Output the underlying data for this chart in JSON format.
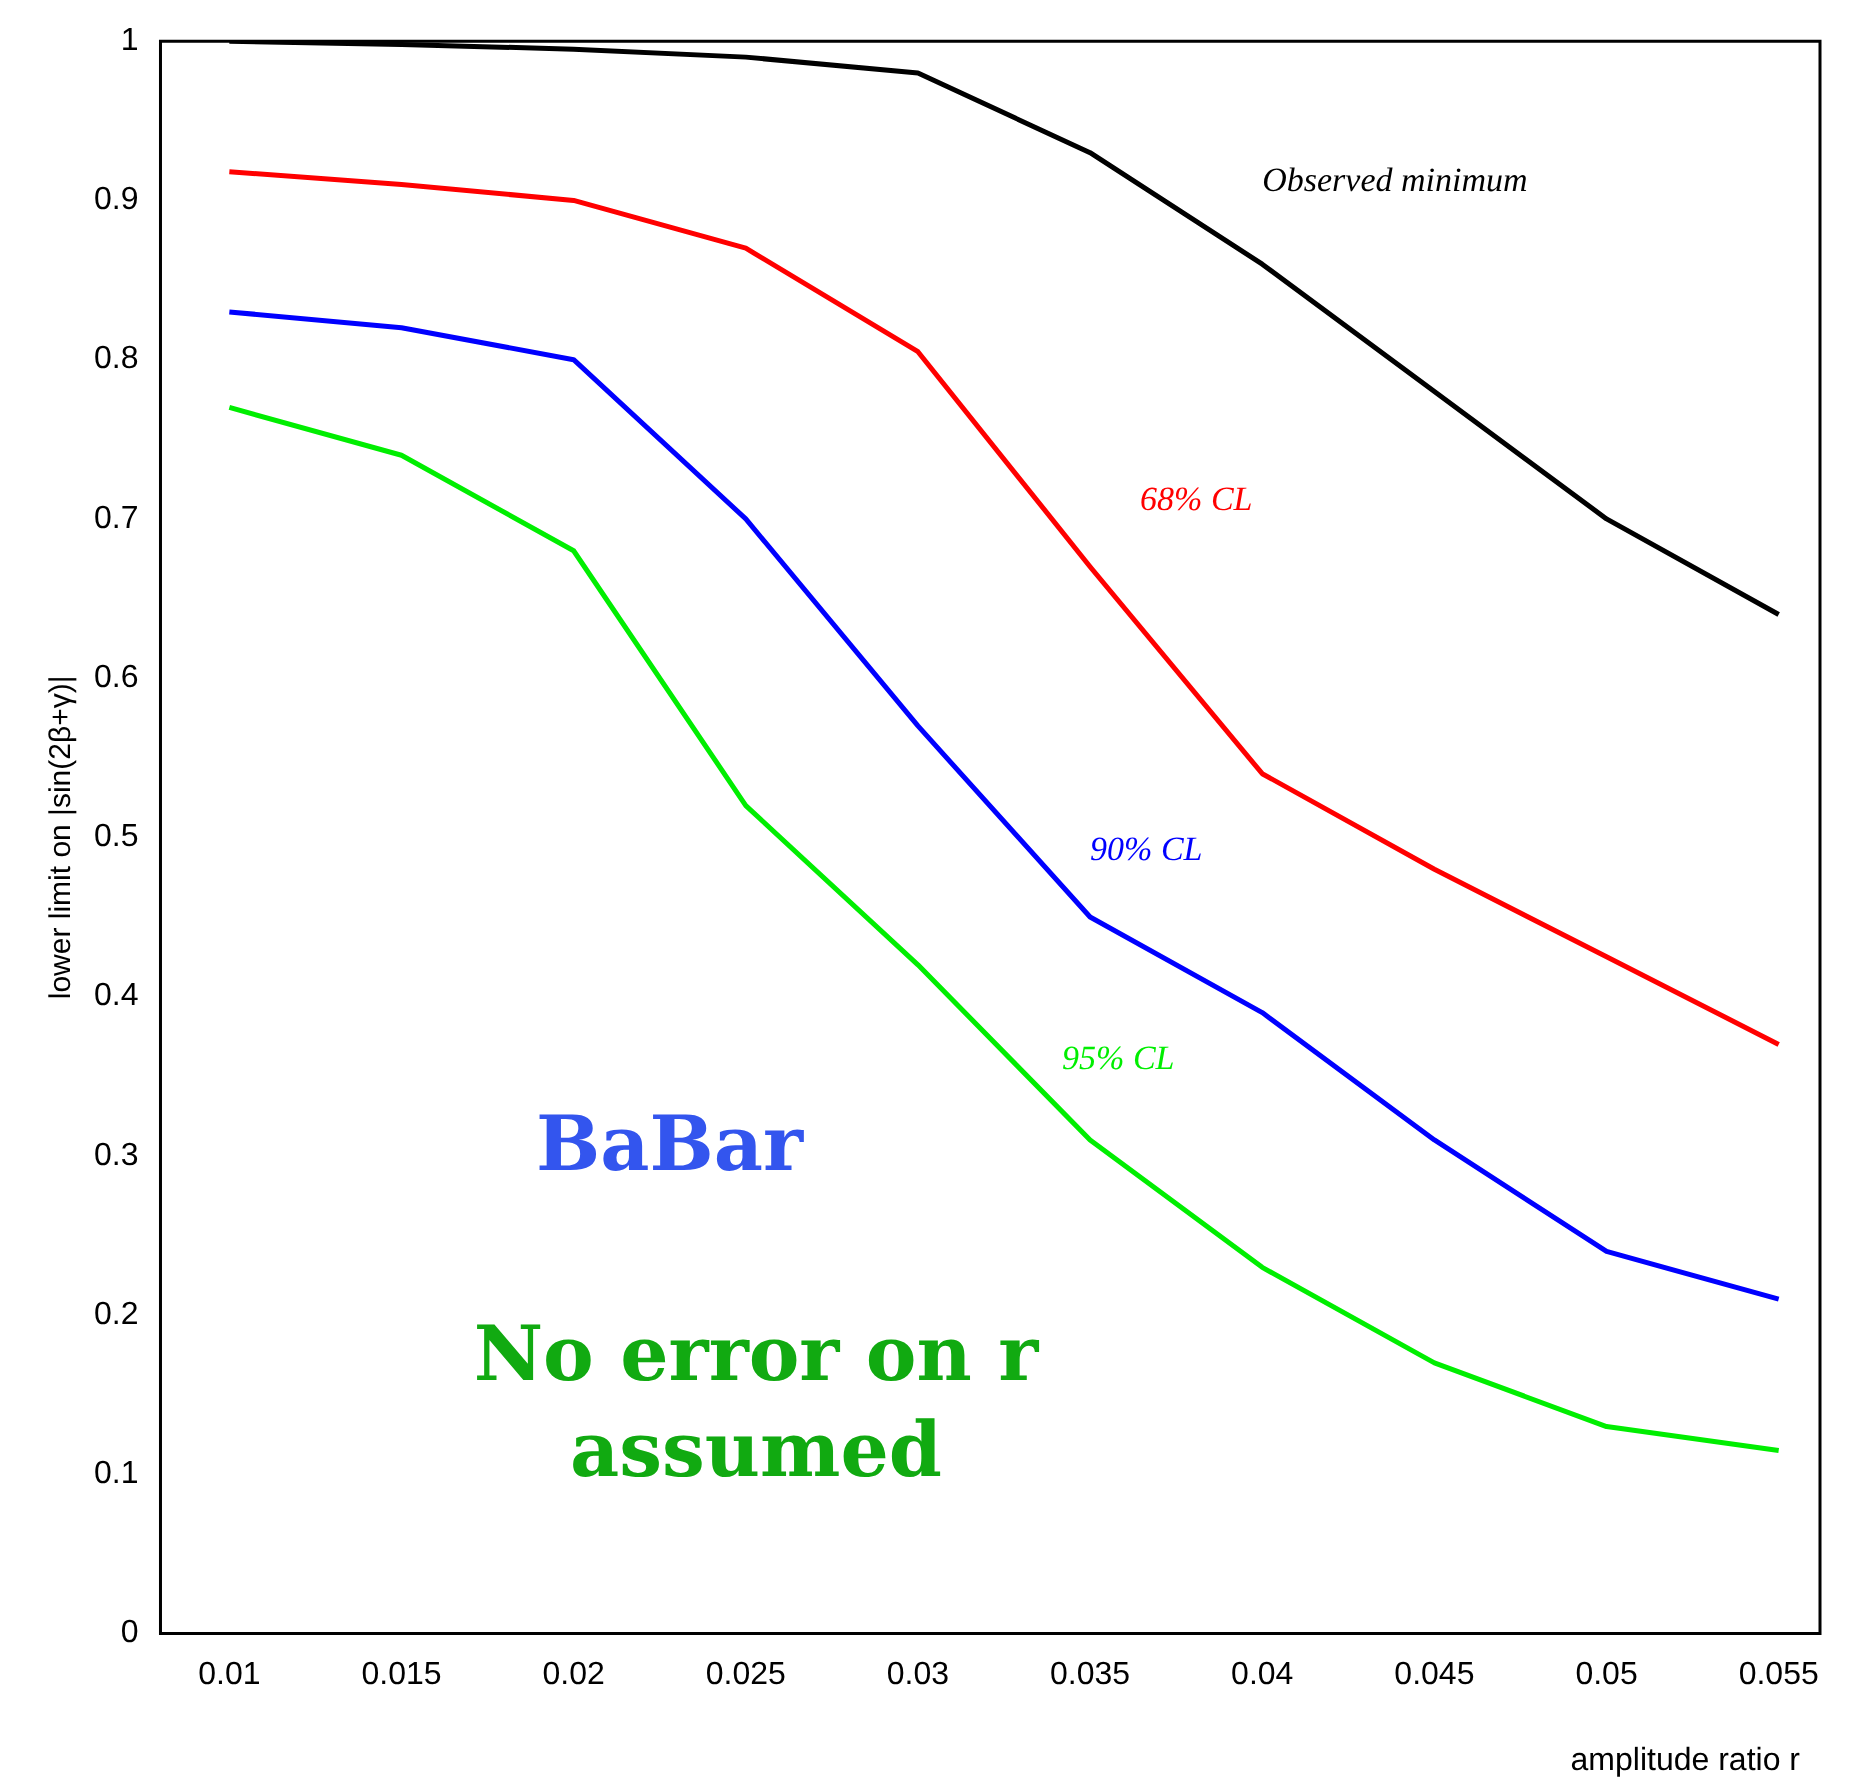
{
  "chart_data": {
    "type": "line",
    "xlabel": "amplitude ratio r",
    "ylabel": "lower limit on |sin(2β+γ)|",
    "x": [
      0.01,
      0.015,
      0.02,
      0.025,
      0.03,
      0.035,
      0.04,
      0.045,
      0.05,
      0.055
    ],
    "series": [
      {
        "name": "Observed minimum",
        "color": "#000000",
        "values": [
          1.0,
          0.998,
          0.995,
          0.99,
          0.98,
          0.93,
          0.86,
          0.78,
          0.7,
          0.64
        ]
      },
      {
        "name": "68% CL",
        "color": "#ff0000",
        "values": [
          0.918,
          0.91,
          0.9,
          0.87,
          0.805,
          0.67,
          0.54,
          0.48,
          0.425,
          0.37
        ]
      },
      {
        "name": "90% CL",
        "color": "#0000ff",
        "values": [
          0.83,
          0.82,
          0.8,
          0.7,
          0.57,
          0.45,
          0.39,
          0.31,
          0.24,
          0.21
        ]
      },
      {
        "name": "95% CL",
        "color": "#00ee00",
        "values": [
          0.77,
          0.74,
          0.68,
          0.52,
          0.42,
          0.31,
          0.23,
          0.17,
          0.13,
          0.115
        ]
      }
    ],
    "annotations": [
      "BaBar",
      "No error on r assumed"
    ],
    "xlim": [
      0.008,
      0.0562
    ],
    "ylim": [
      0,
      1
    ],
    "xticks": [
      0.01,
      0.015,
      0.02,
      0.025,
      0.03,
      0.035,
      0.04,
      0.045,
      0.05,
      0.055
    ],
    "yticks": [
      0,
      0.1,
      0.2,
      0.3,
      0.4,
      0.5,
      0.6,
      0.7,
      0.8,
      0.9,
      1
    ],
    "grid": false,
    "legend": false,
    "marker": "none",
    "line_style": "solid"
  }
}
